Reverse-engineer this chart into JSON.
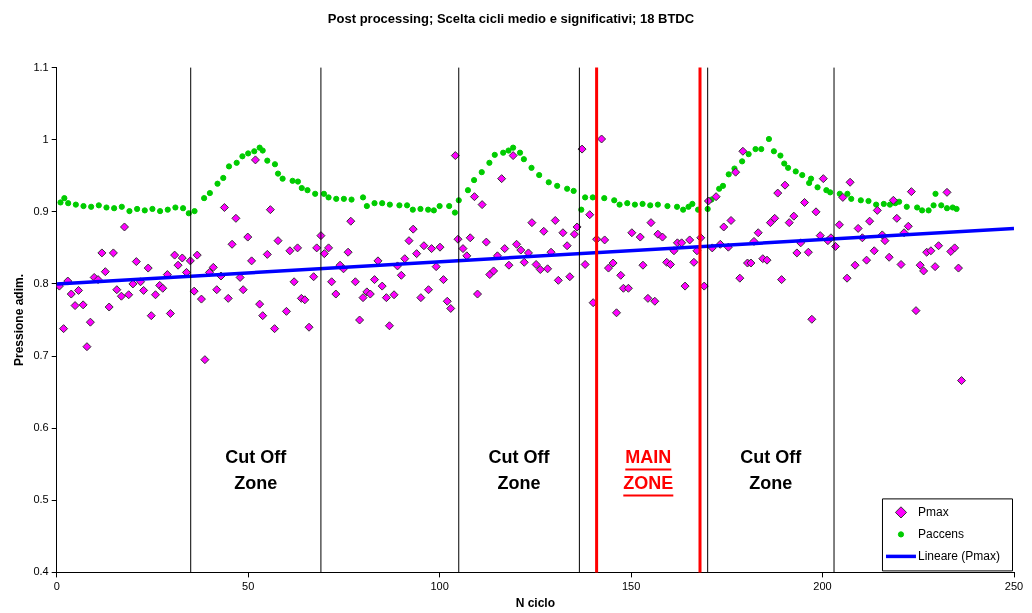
{
  "chart_data": {
    "type": "scatter",
    "title": "Post processing; Scelta cicli medio e significativi; 18 BTDC",
    "xlabel": "N ciclo",
    "ylabel": "Pressione adim.",
    "xlim": [
      0,
      250
    ],
    "xticks": [
      0,
      50,
      100,
      150,
      200,
      250
    ],
    "ylim": [
      0.4,
      1.1
    ],
    "yticks": [
      0.4,
      0.5,
      0.6,
      0.7,
      0.8,
      0.9,
      1,
      1.1
    ],
    "legend": "bottom right",
    "series": [
      {
        "name": "Pmax",
        "type": "scatter",
        "marker": "diamond",
        "color": "#ff00ff",
        "x": [
          0.7,
          1.8,
          2.9,
          3.8,
          4.8,
          5.7,
          6.9,
          7.9,
          8.8,
          9.8,
          10.8,
          11.8,
          12.7,
          13.7,
          14.8,
          15.7,
          16.9,
          17.7,
          18.8,
          19.9,
          20.8,
          21.9,
          22.7,
          23.9,
          24.7,
          25.8,
          26.9,
          27.7,
          28.9,
          29.7,
          30.8,
          31.7,
          32.8,
          33.9,
          34.9,
          35.9,
          36.7,
          37.8,
          38.7,
          39.9,
          40.9,
          41.8,
          42.9,
          43.8,
          44.8,
          45.8,
          46.8,
          47.9,
          48.7,
          49.9,
          50.9,
          51.9,
          53,
          53.8,
          55,
          55.8,
          56.9,
          57.8,
          60,
          60.9,
          62,
          62.9,
          63.9,
          64.8,
          65.9,
          67.1,
          67.9,
          69,
          69.9,
          71,
          71.8,
          72.9,
          74,
          74.9,
          76.1,
          76.8,
          78,
          79.1,
          80,
          81,
          81.9,
          83,
          83.9,
          85,
          86.1,
          86.9,
          88.1,
          89,
          90,
          90.9,
          92,
          93.1,
          94,
          95.1,
          95.9,
          97.1,
          97.9,
          99.1,
          100.1,
          101,
          102,
          102.9,
          104.1,
          104.8,
          106.1,
          107.1,
          108,
          109.1,
          109.9,
          111.1,
          112.2,
          113.1,
          114.1,
          115.1,
          116.2,
          117,
          118.1,
          119.2,
          120.1,
          121.2,
          122.1,
          123.2,
          124.1,
          125.2,
          126.3,
          127.2,
          128.2,
          129.1,
          130.2,
          131,
          132.2,
          133.3,
          134,
          135.2,
          135.9,
          137.2,
          138,
          139.2,
          140.1,
          141,
          142.3,
          143.1,
          144.1,
          145.3,
          146.2,
          147.3,
          148,
          149.3,
          150.2,
          152.4,
          153.1,
          154.4,
          155.2,
          156.2,
          157,
          158.2,
          159.3,
          160.3,
          161.2,
          162.1,
          163.2,
          164.1,
          165.3,
          166.4,
          167.2,
          168.2,
          169.1,
          170.2,
          171.2,
          172.2,
          173.3,
          174.2,
          175.4,
          176.1,
          177.3,
          178.4,
          179.2,
          180.4,
          181.3,
          182.1,
          183.2,
          184.4,
          185.5,
          186.4,
          187.5,
          188.3,
          189.3,
          190.2,
          191.3,
          192.5,
          193.3,
          194.3,
          195.3,
          196.3,
          197.2,
          198.3,
          199.4,
          200.2,
          201.4,
          202.2,
          203.4,
          204.4,
          205.3,
          206.4,
          207.2,
          208.5,
          209.3,
          210.4,
          211.5,
          212.3,
          213.5,
          214.3,
          215.6,
          216.3,
          217.4,
          218.5,
          219.4,
          220.5,
          221.3,
          222.4,
          223.2,
          224.4,
          225.5,
          226.4,
          227.2,
          228.3,
          229.4,
          230.3,
          232.5,
          233.5,
          234.5,
          235.5,
          236.3
        ],
        "values": [
          0.797,
          0.738,
          0.804,
          0.786,
          0.77,
          0.791,
          0.771,
          0.713,
          0.747,
          0.809,
          0.806,
          0.843,
          0.817,
          0.768,
          0.843,
          0.792,
          0.783,
          0.879,
          0.785,
          0.8,
          0.831,
          0.803,
          0.791,
          0.822,
          0.756,
          0.785,
          0.798,
          0.794,
          0.813,
          0.759,
          0.84,
          0.826,
          0.836,
          0.816,
          0.832,
          0.79,
          0.84,
          0.779,
          0.695,
          0.816,
          0.823,
          0.792,
          0.811,
          0.906,
          0.78,
          0.855,
          0.891,
          0.809,
          0.792,
          0.865,
          0.832,
          0.972,
          0.772,
          0.756,
          0.841,
          0.903,
          0.738,
          0.86,
          0.762,
          0.846,
          0.803,
          0.85,
          0.78,
          0.778,
          0.74,
          0.81,
          0.85,
          0.867,
          0.842,
          0.85,
          0.803,
          0.786,
          0.826,
          0.821,
          0.844,
          0.887,
          0.803,
          0.75,
          0.781,
          0.789,
          0.786,
          0.806,
          0.832,
          0.797,
          0.781,
          0.742,
          0.785,
          0.825,
          0.812,
          0.835,
          0.86,
          0.876,
          0.842,
          0.781,
          0.853,
          0.792,
          0.849,
          0.824,
          0.851,
          0.806,
          0.776,
          0.766,
          0.978,
          0.862,
          0.849,
          0.839,
          0.864,
          0.921,
          0.786,
          0.91,
          0.858,
          0.813,
          0.818,
          0.839,
          0.946,
          0.849,
          0.826,
          0.978,
          0.855,
          0.847,
          0.83,
          0.843,
          0.885,
          0.827,
          0.82,
          0.873,
          0.821,
          0.844,
          0.888,
          0.805,
          0.871,
          0.853,
          0.81,
          0.869,
          0.879,
          0.987,
          0.827,
          0.896,
          0.774,
          0.862,
          1.001,
          0.861,
          0.822,
          0.829,
          0.76,
          0.812,
          0.794,
          0.794,
          0.871,
          0.865,
          0.826,
          0.78,
          0.885,
          0.776,
          0.869,
          0.865,
          0.83,
          0.827,
          0.846,
          0.857,
          0.857,
          0.797,
          0.861,
          0.83,
          0.846,
          0.864,
          0.797,
          0.915,
          0.85,
          0.921,
          0.855,
          0.879,
          0.851,
          0.888,
          0.955,
          0.808,
          0.984,
          0.829,
          0.829,
          0.859,
          0.871,
          0.835,
          0.833,
          0.885,
          0.891,
          0.926,
          0.806,
          0.937,
          0.885,
          0.894,
          0.843,
          0.857,
          0.913,
          0.844,
          0.751,
          0.9,
          0.867,
          0.946,
          0.86,
          0.864,
          0.852,
          0.882,
          0.92,
          0.808,
          0.941,
          0.826,
          0.877,
          0.864,
          0.833,
          0.887,
          0.846,
          0.902,
          0.868,
          0.86,
          0.837,
          0.916,
          0.891,
          0.827,
          0.871,
          0.88,
          0.928,
          0.763,
          0.826,
          0.818,
          0.844,
          0.846,
          0.824,
          0.853,
          0.927,
          0.845,
          0.85,
          0.822,
          0.666
        ]
      },
      {
        "name": "Paccens",
        "type": "scatter",
        "marker": "circle",
        "color": "#00cc00",
        "x": [
          1,
          2,
          3,
          5,
          7,
          9,
          11,
          13,
          15,
          17,
          19,
          21,
          23,
          25,
          27,
          29,
          31,
          33,
          34.5,
          36,
          38.5,
          40,
          42,
          43.5,
          45,
          47,
          48.5,
          50,
          51.6,
          53,
          53.8,
          55,
          57,
          57.8,
          59,
          61.6,
          63,
          64,
          65.5,
          67.5,
          69.8,
          71,
          73,
          75,
          77,
          80,
          81,
          83,
          85,
          87,
          89.5,
          91.5,
          93,
          95,
          97,
          98.5,
          100,
          102.5,
          104,
          105,
          107.4,
          109,
          111,
          113,
          114.4,
          116.6,
          118,
          119.2,
          121,
          122,
          124,
          126,
          128.5,
          130.7,
          133.3,
          135,
          137,
          138,
          140,
          143,
          145.6,
          147,
          149,
          151,
          153,
          155,
          157,
          159.5,
          162,
          163.6,
          165,
          166,
          167.5,
          170,
          171,
          173,
          174,
          175.5,
          177,
          179,
          180.7,
          182.5,
          184,
          186,
          187.3,
          189,
          190,
          191,
          193,
          194.7,
          196.5,
          197,
          198.7,
          201,
          202,
          204.5,
          206.5,
          207.5,
          210,
          212,
          214,
          216,
          217.6,
          219,
          220,
          222,
          224.7,
          226,
          227.7,
          229,
          229.5,
          231,
          232.5,
          234,
          235
        ],
        "values": [
          0.913,
          0.919,
          0.912,
          0.91,
          0.908,
          0.907,
          0.909,
          0.906,
          0.905,
          0.907,
          0.901,
          0.904,
          0.902,
          0.904,
          0.901,
          0.903,
          0.906,
          0.905,
          0.898,
          0.901,
          0.919,
          0.926,
          0.939,
          0.947,
          0.963,
          0.968,
          0.977,
          0.981,
          0.984,
          0.989,
          0.985,
          0.971,
          0.966,
          0.953,
          0.946,
          0.943,
          0.942,
          0.933,
          0.93,
          0.925,
          0.925,
          0.92,
          0.918,
          0.918,
          0.917,
          0.92,
          0.908,
          0.912,
          0.912,
          0.91,
          0.909,
          0.909,
          0.903,
          0.904,
          0.903,
          0.902,
          0.908,
          0.908,
          0.899,
          0.916,
          0.93,
          0.944,
          0.955,
          0.968,
          0.979,
          0.982,
          0.985,
          0.989,
          0.982,
          0.973,
          0.961,
          0.951,
          0.941,
          0.936,
          0.932,
          0.929,
          0.903,
          0.92,
          0.92,
          0.919,
          0.916,
          0.91,
          0.912,
          0.91,
          0.911,
          0.909,
          0.91,
          0.908,
          0.907,
          0.903,
          0.907,
          0.911,
          0.903,
          0.904,
          0.917,
          0.932,
          0.936,
          0.952,
          0.96,
          0.97,
          0.98,
          0.987,
          0.987,
          1.001,
          0.984,
          0.978,
          0.967,
          0.961,
          0.956,
          0.951,
          0.94,
          0.946,
          0.934,
          0.93,
          0.927,
          0.925,
          0.925,
          0.918,
          0.916,
          0.915,
          0.91,
          0.911,
          0.91,
          0.912,
          0.914,
          0.907,
          0.906,
          0.902,
          0.902,
          0.909,
          0.925,
          0.909,
          0.905,
          0.906,
          0.904
        ]
      },
      {
        "name": "Lineare (Pmax)",
        "type": "line",
        "marker": "none",
        "color": "#0000ff",
        "x": [
          0,
          250
        ],
        "values": [
          0.8,
          0.877
        ]
      }
    ],
    "ref_lines": [
      {
        "axis": "x",
        "value": 35,
        "color": "#000000"
      },
      {
        "axis": "x",
        "value": 69,
        "color": "#000000"
      },
      {
        "axis": "x",
        "value": 105,
        "color": "#000000"
      },
      {
        "axis": "x",
        "value": 136.5,
        "color": "#000000"
      },
      {
        "axis": "x",
        "value": 141,
        "color": "#ff0000"
      },
      {
        "axis": "x",
        "value": 168,
        "color": "#ff0000"
      },
      {
        "axis": "x",
        "value": 170,
        "color": "#000000"
      },
      {
        "axis": "x",
        "value": 203,
        "color": "#000000"
      }
    ],
    "annotations": [
      "Cut Off Zone",
      "Cut Off Zone",
      "MAIN ZONE",
      "Cut Off Zone"
    ]
  }
}
